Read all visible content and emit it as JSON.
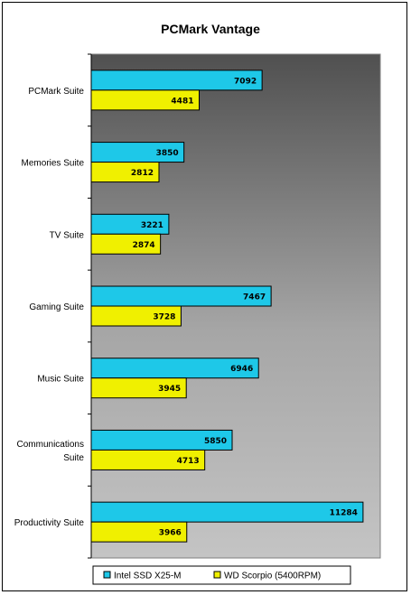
{
  "chart_data": {
    "type": "bar",
    "orientation": "horizontal",
    "title": "PCMark Vantage",
    "categories": [
      "PCMark Suite",
      "Memories Suite",
      "TV Suite",
      "Gaming Suite",
      "Music Suite",
      "Communications Suite",
      "Productivity Suite"
    ],
    "category_lines": [
      [
        "PCMark Suite"
      ],
      [
        "Memories Suite"
      ],
      [
        "TV Suite"
      ],
      [
        "Gaming Suite"
      ],
      [
        "Music Suite"
      ],
      [
        "Communications",
        "Suite"
      ],
      [
        "Productivity Suite"
      ]
    ],
    "series": [
      {
        "name": "Intel SSD X25-M",
        "color": "#1ec8e8",
        "values": [
          7092,
          3850,
          3221,
          7467,
          6946,
          5850,
          11284
        ]
      },
      {
        "name": "WD Scorpio (5400RPM)",
        "color": "#f0f000",
        "values": [
          4481,
          2812,
          2874,
          3728,
          3945,
          4713,
          3966
        ]
      }
    ],
    "xlim": [
      0,
      12000
    ],
    "grid": false,
    "legend": "bottom",
    "background": "gradient-dark-to-light"
  }
}
